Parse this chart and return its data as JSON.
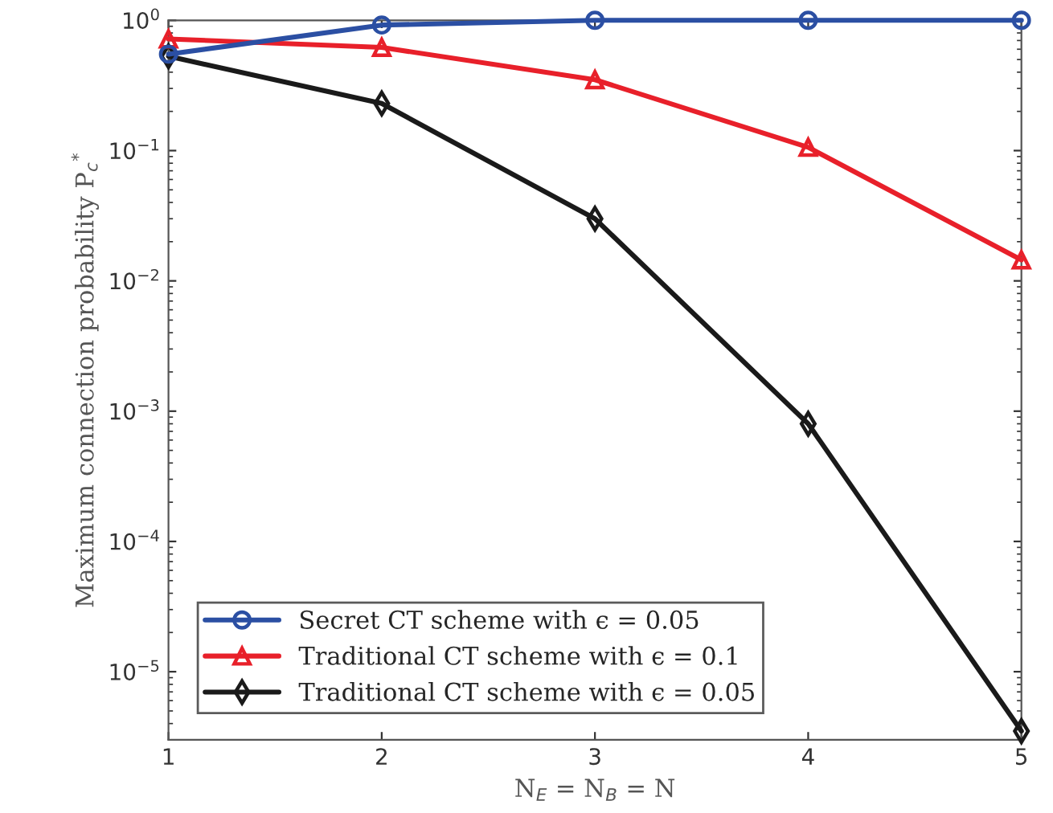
{
  "chart_data": {
    "type": "line",
    "xlabel": "N$_{E}$ = N$_{B}$ = N",
    "ylabel": "Maximum connection probability P$_{c}$$^{*}$",
    "x": [
      1,
      2,
      3,
      4,
      5
    ],
    "xlim": [
      1,
      5
    ],
    "xticks": [
      1,
      2,
      3,
      4,
      5
    ],
    "ylim": [
      3e-06,
      1
    ],
    "yticks": [
      {
        "value": 1,
        "label": "10$^{0}$"
      },
      {
        "value": 0.1,
        "label": "10$^{−1}$"
      },
      {
        "value": 0.01,
        "label": "10$^{−2}$"
      },
      {
        "value": 0.001,
        "label": "10$^{−3}$"
      },
      {
        "value": 0.0001,
        "label": "10$^{−4}$"
      },
      {
        "value": 1e-05,
        "label": "10$^{−5}$"
      }
    ],
    "log": "y",
    "grid": false,
    "legend": "bottom left",
    "line_style": "solid",
    "series": [
      {
        "name": "Secret CT scheme with ϵ = 0.05",
        "color": "#2b4fa3",
        "marker": "circle",
        "values": [
          0.55,
          0.92,
          1,
          1,
          1
        ]
      },
      {
        "name": "Traditional CT scheme with ϵ = 0.1",
        "color": "#e8202a",
        "marker": "triangle",
        "values": [
          0.72,
          0.62,
          0.35,
          0.106,
          0.0145
        ]
      },
      {
        "name": "Traditional CT scheme with ϵ = 0.05",
        "color": "#1a1a1a",
        "marker": "diamond",
        "values": [
          0.53,
          0.23,
          0.03,
          0.0008,
          3.5e-06
        ]
      }
    ]
  }
}
